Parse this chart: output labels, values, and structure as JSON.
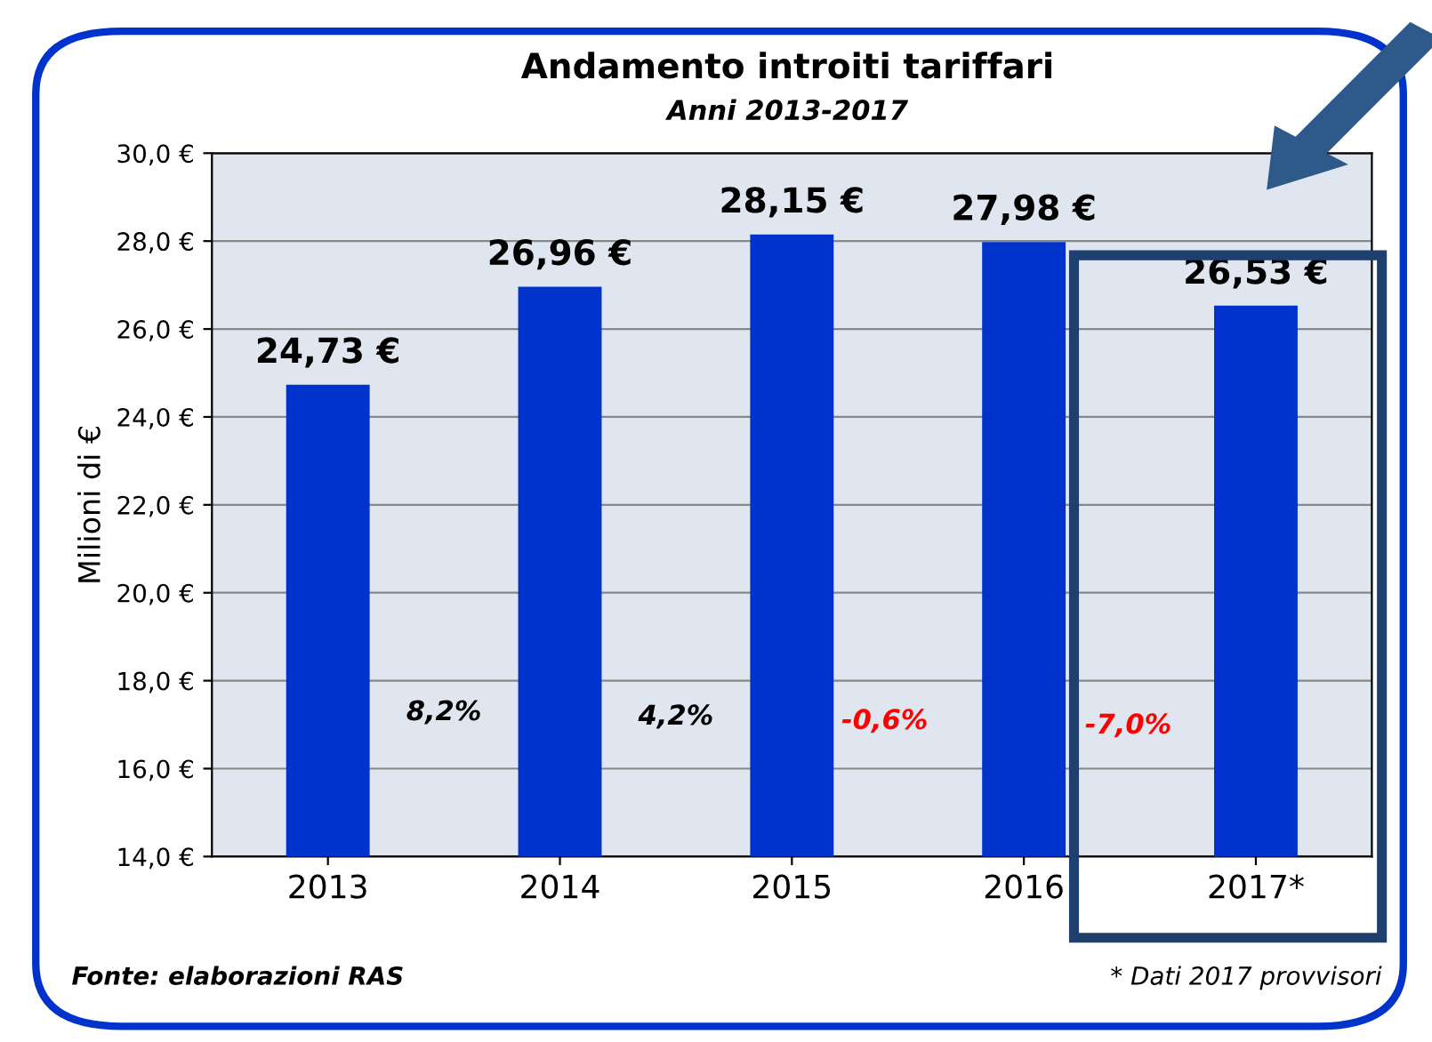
{
  "chart_data": {
    "type": "bar",
    "title": "Andamento introiti tariffari",
    "subtitle": "Anni 2013-2017",
    "ylabel": "Milioni di €",
    "categories": [
      "2013",
      "2014",
      "2015",
      "2016",
      "2017*"
    ],
    "values": [
      24.73,
      26.96,
      28.15,
      27.98,
      26.53
    ],
    "value_labels": [
      "24,73 €",
      "26,96 €",
      "28,15 €",
      "27,98 €",
      "26,53 €"
    ],
    "color": "#0033cc",
    "ylim": [
      14,
      30
    ],
    "yticks": [
      {
        "value": 14,
        "label": "14,0 €"
      },
      {
        "value": 16,
        "label": "16,0 €"
      },
      {
        "value": 18,
        "label": "18,0 €"
      },
      {
        "value": 20,
        "label": "20,0 €"
      },
      {
        "value": 22,
        "label": "22,0 €"
      },
      {
        "value": 24,
        "label": "24,0 €"
      },
      {
        "value": 26,
        "label": "26,0 €"
      },
      {
        "value": 28,
        "label": "28,0 €"
      },
      {
        "value": 30,
        "label": "30,0 €"
      }
    ],
    "grid": "y",
    "annotations": [
      "8,2%",
      "4,2%",
      "-0,6%",
      "-7,0%",
      "Fonte: elaborazioni RAS",
      "* Dati 2017 provvisori"
    ]
  }
}
